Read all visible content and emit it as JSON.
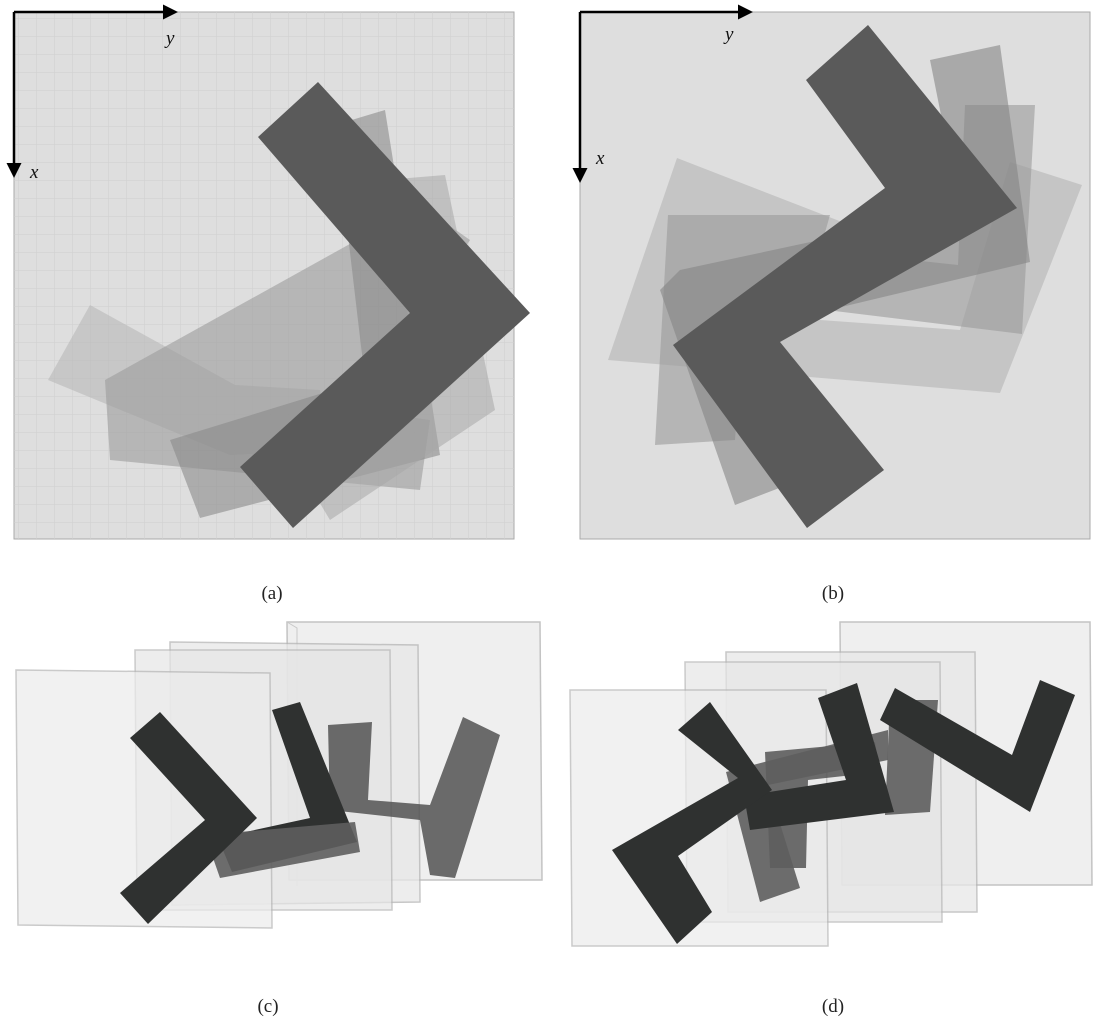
{
  "figure": {
    "panels": [
      {
        "id": "a",
        "caption": "(a)",
        "axes": {
          "horizontal": "y",
          "vertical": "x"
        }
      },
      {
        "id": "b",
        "caption": "(b)",
        "axes": {
          "horizontal": "y",
          "vertical": "x"
        }
      },
      {
        "id": "c",
        "caption": "(c)"
      },
      {
        "id": "d",
        "caption": "(d)"
      }
    ],
    "colors": {
      "background_grid": "#dedede",
      "grid_line": "#cfcfcf",
      "shape_dark": "#5a5a5a",
      "shape_mid": "#858585",
      "shape_light": "#b0b0b0",
      "shape_black": "#2f3130",
      "frame_fill": "#e8e8e8",
      "frame_stroke": "#b5b5b5"
    }
  }
}
